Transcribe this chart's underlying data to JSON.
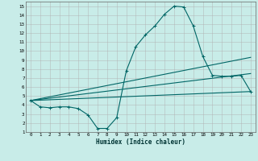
{
  "title": "",
  "xlabel": "Humidex (Indice chaleur)",
  "bg_color": "#c8ece8",
  "grid_color": "#b0b0b0",
  "line_color": "#006666",
  "xlim": [
    -0.5,
    23.5
  ],
  "ylim": [
    1,
    15.5
  ],
  "yticks": [
    1,
    2,
    3,
    4,
    5,
    6,
    7,
    8,
    9,
    10,
    11,
    12,
    13,
    14,
    15
  ],
  "xticks": [
    0,
    1,
    2,
    3,
    4,
    5,
    6,
    7,
    8,
    9,
    10,
    11,
    12,
    13,
    14,
    15,
    16,
    17,
    18,
    19,
    20,
    21,
    22,
    23
  ],
  "curve1_x": [
    0,
    1,
    2,
    3,
    4,
    5,
    6,
    7,
    8,
    9,
    10,
    11,
    12,
    13,
    14,
    15,
    16,
    17,
    18,
    19,
    20,
    21,
    22,
    23
  ],
  "curve1_y": [
    4.5,
    3.8,
    3.7,
    3.8,
    3.8,
    3.6,
    2.9,
    1.4,
    1.4,
    2.6,
    7.8,
    10.5,
    11.8,
    12.8,
    14.1,
    15.0,
    14.9,
    12.8,
    9.4,
    7.3,
    7.2,
    7.2,
    7.3,
    5.5
  ],
  "curve2_x": [
    0,
    23
  ],
  "curve2_y": [
    4.5,
    5.5
  ],
  "curve3_x": [
    0,
    23
  ],
  "curve3_y": [
    4.5,
    7.5
  ],
  "curve4_x": [
    0,
    23
  ],
  "curve4_y": [
    4.5,
    9.3
  ]
}
